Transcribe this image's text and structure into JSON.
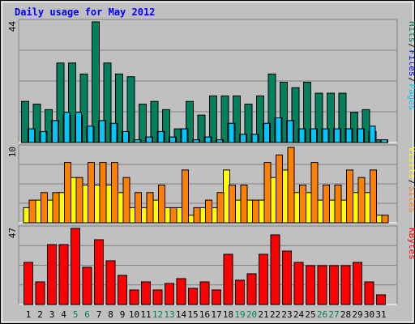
{
  "title": "Daily usage for May 2012",
  "colors": {
    "background": "#c0c0c0",
    "title": "#0000ff",
    "hits": "#00805c",
    "files": "#0000ff",
    "pages": "#00c8ff",
    "visits": "#ffff00",
    "sites": "#ff8000",
    "kbytes": "#ff0000",
    "weekend": "#00805c",
    "weekday": "#000000",
    "separator": "#000000",
    "grid": "#808080"
  },
  "x_labels": [
    "1",
    "2",
    "3",
    "4",
    "5",
    "6",
    "7",
    "8",
    "9",
    "10",
    "11",
    "12",
    "13",
    "14",
    "15",
    "16",
    "17",
    "18",
    "19",
    "20",
    "21",
    "22",
    "23",
    "24",
    "25",
    "26",
    "27",
    "28",
    "29",
    "30",
    "31"
  ],
  "weekend_days": [
    5,
    6,
    12,
    13,
    19,
    20,
    26,
    27
  ],
  "chart_data": [
    {
      "type": "bar",
      "panel": "top",
      "ymax_label": "44",
      "ylim": [
        0,
        44
      ],
      "legend": [
        {
          "name": "Pages",
          "color": "#00c8ff"
        },
        {
          "name": "Files",
          "color": "#0000ff"
        },
        {
          "name": "Hits",
          "color": "#00805c"
        }
      ],
      "series": [
        {
          "name": "Hits",
          "values": [
            15,
            14,
            12,
            29,
            29,
            25,
            44,
            29,
            25,
            24,
            14,
            15,
            12,
            5,
            15,
            10,
            17,
            17,
            17,
            14,
            17,
            25,
            22,
            20,
            22,
            18,
            18,
            18,
            11,
            12,
            1
          ]
        },
        {
          "name": "Files",
          "values": [
            5,
            4,
            8,
            10,
            10,
            6,
            8,
            7,
            4,
            1,
            2,
            4,
            2,
            5,
            1,
            2,
            1,
            7,
            3,
            3,
            7,
            9,
            8,
            5,
            5,
            5,
            5,
            5,
            5,
            4,
            1
          ]
        },
        {
          "name": "Pages",
          "values": [
            5,
            4,
            8,
            11,
            11,
            6,
            8,
            7,
            4,
            1,
            2,
            4,
            2,
            5,
            1,
            2,
            1,
            7,
            3,
            3,
            7,
            9,
            8,
            5,
            5,
            5,
            5,
            5,
            5,
            6,
            1
          ]
        }
      ]
    },
    {
      "type": "bar",
      "panel": "middle",
      "ymax_label": "10",
      "ylim": [
        0,
        10
      ],
      "legend": [
        {
          "name": "Sites",
          "color": "#ff8000"
        },
        {
          "name": "Visits",
          "color": "#ffff00"
        }
      ],
      "series": [
        {
          "name": "Visits",
          "values": [
            2,
            3,
            3,
            4,
            6,
            5,
            5,
            5,
            4,
            2,
            2,
            3,
            2,
            2,
            1,
            2,
            2,
            7,
            3,
            3,
            3,
            6,
            7,
            4,
            4,
            3,
            3,
            3,
            4,
            4,
            1
          ]
        },
        {
          "name": "Sites",
          "values": [
            3,
            4,
            4,
            8,
            6,
            8,
            8,
            8,
            6,
            4,
            4,
            5,
            2,
            7,
            2,
            3,
            4,
            5,
            5,
            3,
            8,
            9,
            10,
            5,
            8,
            5,
            5,
            7,
            6,
            7,
            1
          ]
        }
      ]
    },
    {
      "type": "bar",
      "panel": "bottom",
      "ymax_label": "47",
      "ylim": [
        0,
        47
      ],
      "legend": [
        {
          "name": "KBytes",
          "color": "#ff0000"
        }
      ],
      "series": [
        {
          "name": "KBytes",
          "values": [
            26,
            14,
            37,
            37,
            47,
            23,
            40,
            27,
            18,
            9,
            14,
            9,
            13,
            16,
            10,
            14,
            9,
            31,
            15,
            19,
            31,
            43,
            33,
            26,
            24,
            24,
            24,
            24,
            26,
            14,
            6
          ]
        }
      ]
    }
  ]
}
